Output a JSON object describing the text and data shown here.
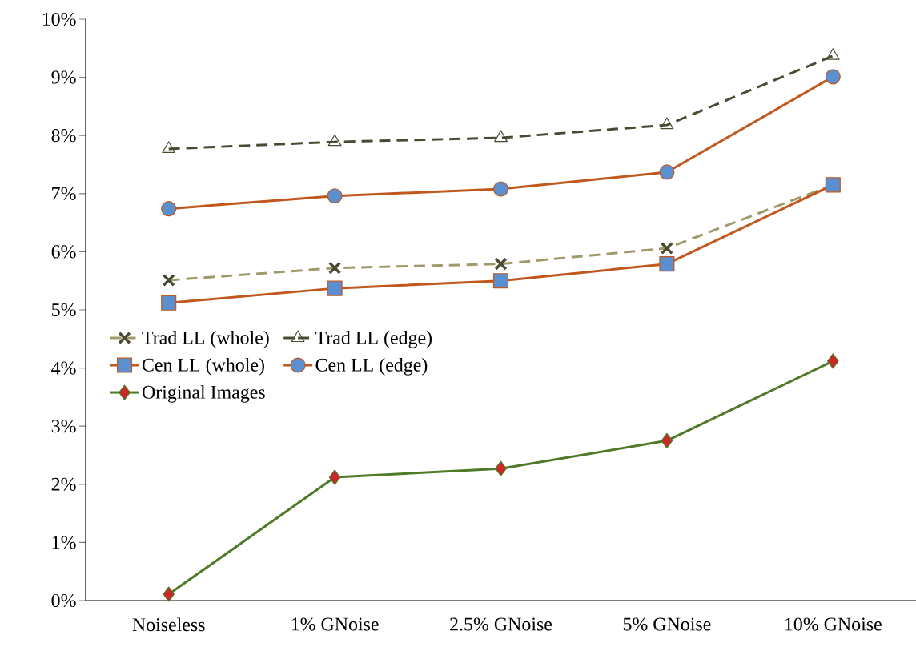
{
  "chart_data": {
    "type": "line",
    "categories": [
      "Noiseless",
      "1% GNoise",
      "2.5% GNoise",
      "5% GNoise",
      "10% GNoise"
    ],
    "series": [
      {
        "name": "Trad LL (whole)",
        "color": "#a09a6a",
        "marker": "cross",
        "line_style": "dashed",
        "values": [
          5.51,
          5.72,
          5.79,
          6.06,
          7.15
        ]
      },
      {
        "name": "Trad LL (edge)",
        "color": "#4a4a32",
        "marker": "triangle",
        "line_style": "dashed",
        "values": [
          7.77,
          7.89,
          7.96,
          8.18,
          9.37
        ]
      },
      {
        "name": "Cen LL (whole)",
        "color": "#c0581e",
        "marker": "square",
        "line_style": "solid",
        "values": [
          5.12,
          5.37,
          5.5,
          5.79,
          7.15
        ]
      },
      {
        "name": "Cen LL (edge)",
        "color": "#c0581e",
        "marker": "circle",
        "line_style": "solid",
        "values": [
          6.74,
          6.96,
          7.08,
          7.37,
          9.01
        ]
      },
      {
        "name": "Original Images",
        "color": "#4f7a28",
        "marker": "diamond",
        "line_style": "solid",
        "values": [
          0.11,
          2.12,
          2.27,
          2.75,
          4.12
        ]
      }
    ],
    "ylim": [
      0,
      10
    ],
    "yticks": [
      {
        "value": 0,
        "label": "0%"
      },
      {
        "value": 1,
        "label": "1%"
      },
      {
        "value": 2,
        "label": "2%"
      },
      {
        "value": 3,
        "label": "3%"
      },
      {
        "value": 4,
        "label": "4%"
      },
      {
        "value": 5,
        "label": "5%"
      },
      {
        "value": 6,
        "label": "6%"
      },
      {
        "value": 7,
        "label": "7%"
      },
      {
        "value": 8,
        "label": "8%"
      },
      {
        "value": 9,
        "label": "9%"
      },
      {
        "value": 10,
        "label": "10%"
      }
    ],
    "grid": false,
    "legend": "left"
  }
}
